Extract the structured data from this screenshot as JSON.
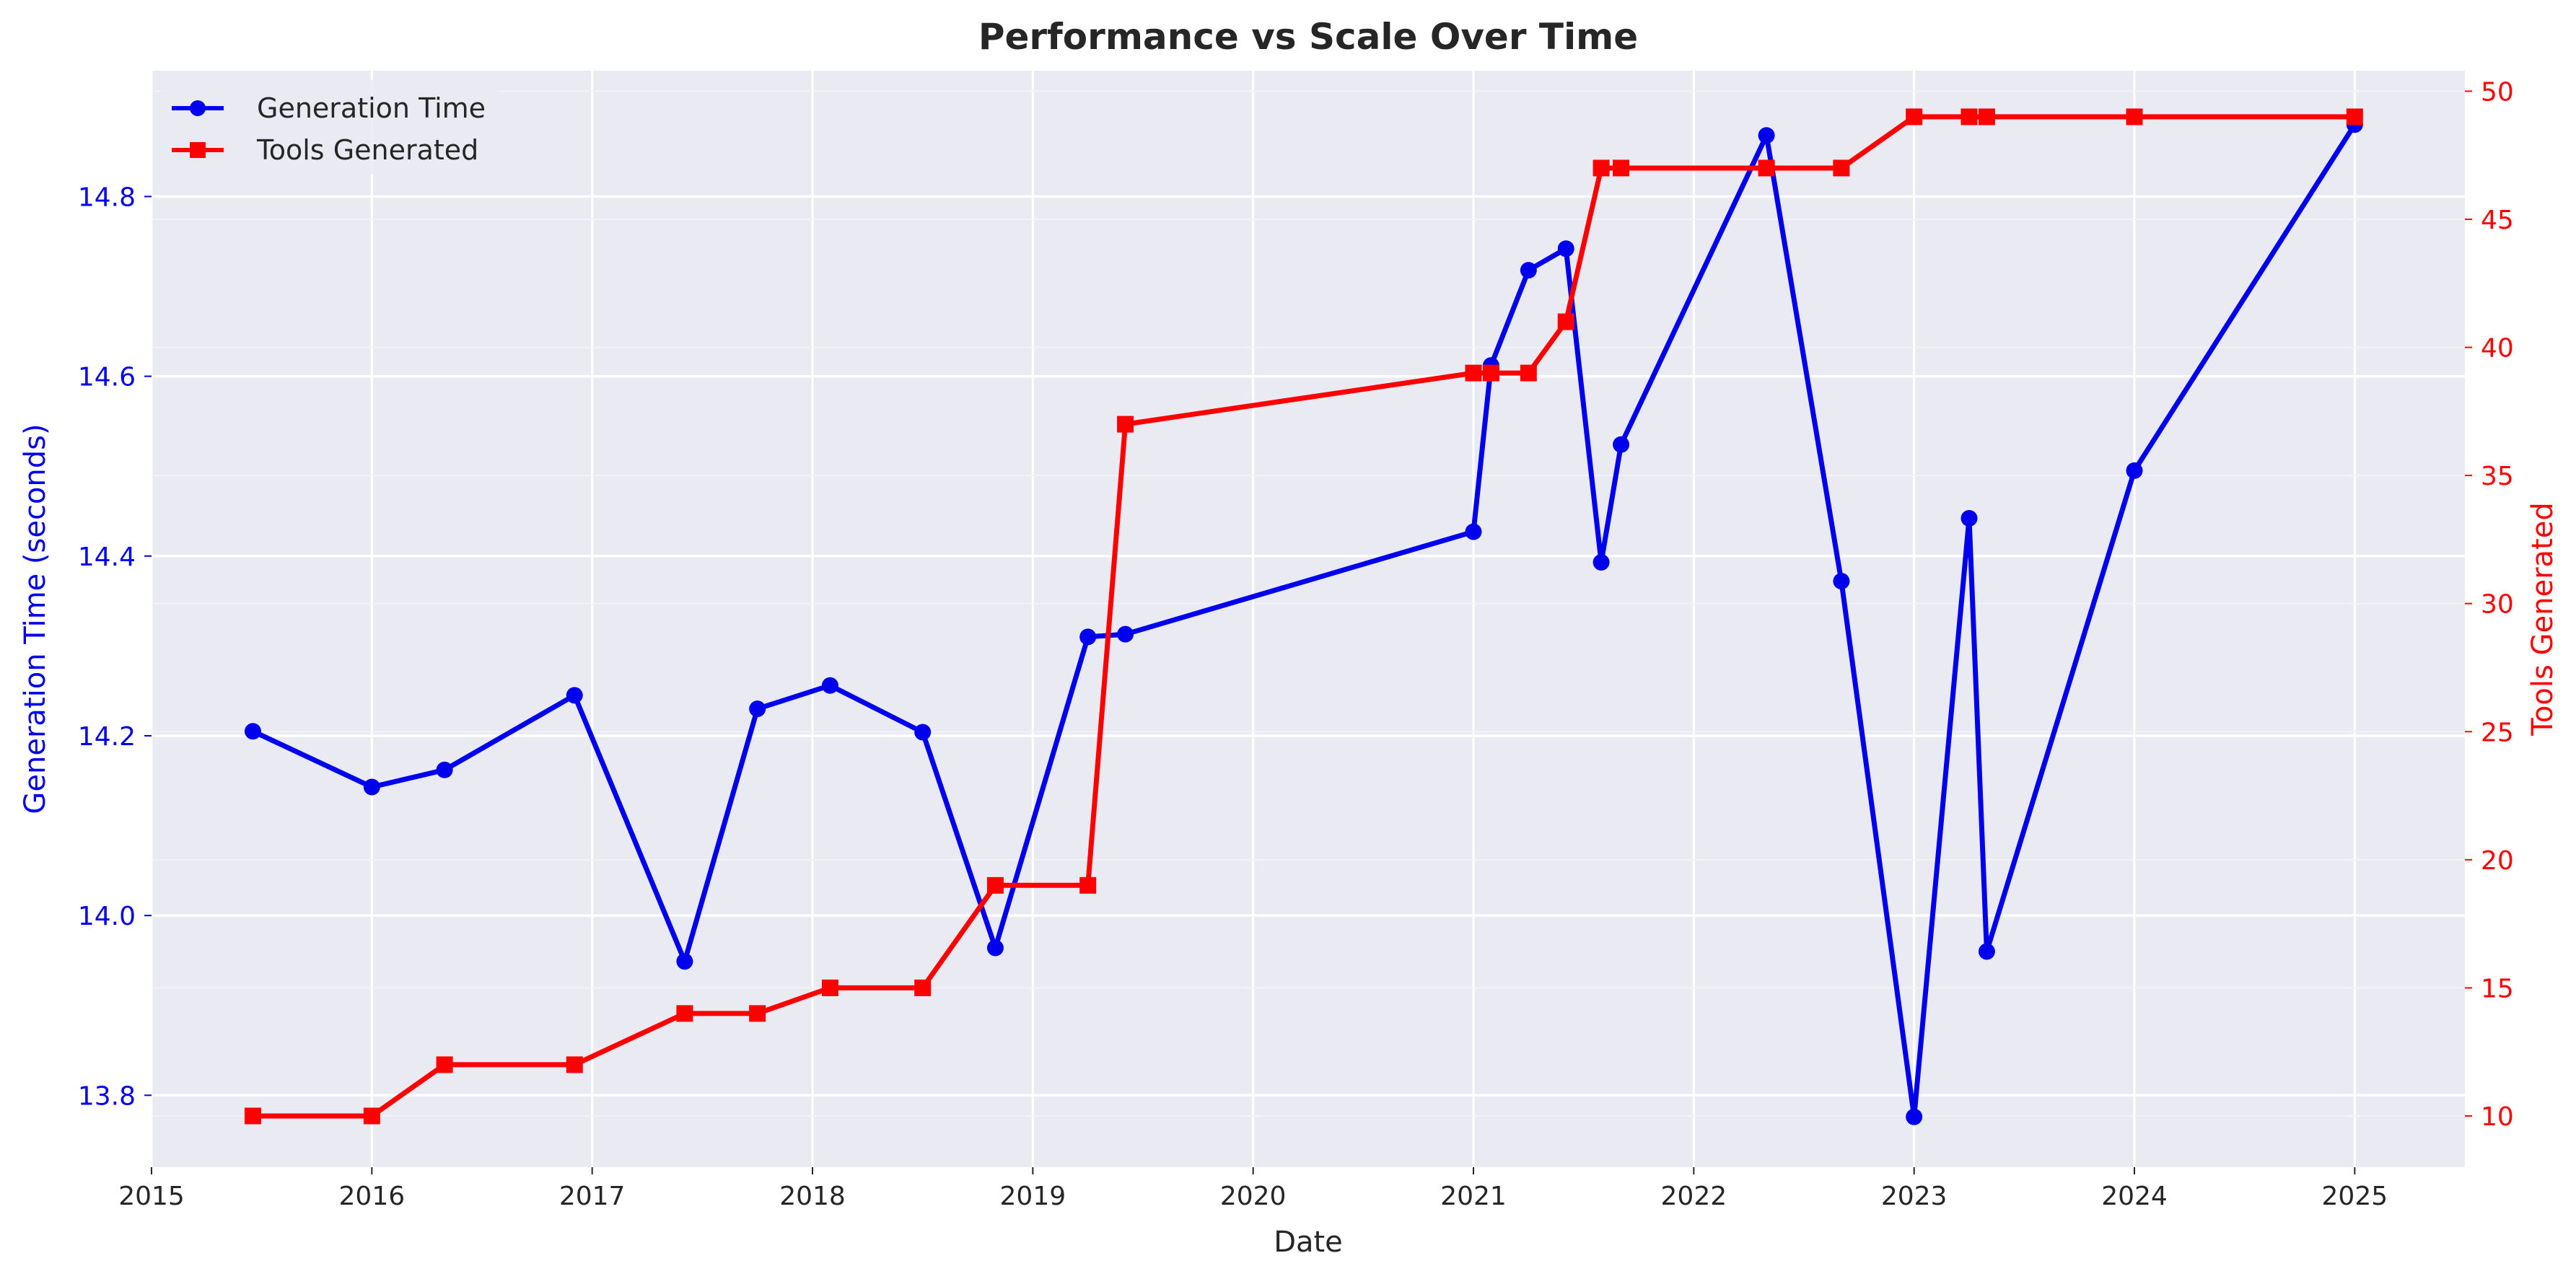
{
  "chart_data": {
    "type": "line",
    "title": "Performance vs Scale Over Time",
    "xlabel": "Date",
    "x_ticks": [
      "2015",
      "2016",
      "2017",
      "2018",
      "2019",
      "2020",
      "2021",
      "2022",
      "2023",
      "2024",
      "2025"
    ],
    "xlim": [
      2015.0,
      2025.5
    ],
    "left_axis": {
      "label": "Generation Time (seconds)",
      "color": "#0000ee",
      "ylim": [
        13.72,
        14.94
      ],
      "ticks": [
        13.8,
        14.0,
        14.2,
        14.4,
        14.6,
        14.8
      ],
      "tick_labels": [
        "13.8",
        "14.0",
        "14.2",
        "14.4",
        "14.6",
        "14.8"
      ]
    },
    "right_axis": {
      "label": "Tools Generated",
      "color": "#ff0000",
      "ylim": [
        8.0,
        50.8
      ],
      "ticks": [
        10,
        15,
        20,
        25,
        30,
        35,
        40,
        45,
        50
      ],
      "tick_labels": [
        "10",
        "15",
        "20",
        "25",
        "30",
        "35",
        "40",
        "45",
        "50"
      ]
    },
    "legend": {
      "position": "top-left"
    },
    "series": [
      {
        "name": "Generation Time",
        "axis": "left",
        "color": "#0000ee",
        "marker": "circle",
        "x": [
          2015.46,
          2016.0,
          2016.33,
          2016.92,
          2017.42,
          2017.75,
          2018.08,
          2018.5,
          2018.83,
          2019.25,
          2019.42,
          2021.0,
          2021.08,
          2021.25,
          2021.42,
          2021.58,
          2021.67,
          2022.33,
          2022.67,
          2023.0,
          2023.25,
          2023.33,
          2024.0,
          2025.0
        ],
        "values": [
          14.205,
          14.143,
          14.162,
          14.245,
          13.949,
          14.23,
          14.256,
          14.204,
          13.964,
          14.31,
          14.313,
          14.427,
          14.612,
          14.718,
          14.742,
          14.393,
          14.524,
          14.868,
          14.372,
          13.776,
          14.442,
          13.96,
          14.495,
          14.88
        ]
      },
      {
        "name": "Tools Generated",
        "axis": "right",
        "color": "#ff0000",
        "marker": "square",
        "x": [
          2015.46,
          2016.0,
          2016.33,
          2016.92,
          2017.42,
          2017.75,
          2018.08,
          2018.5,
          2018.83,
          2019.25,
          2019.42,
          2021.0,
          2021.08,
          2021.25,
          2021.42,
          2021.58,
          2021.67,
          2022.33,
          2022.67,
          2023.0,
          2023.25,
          2023.33,
          2024.0,
          2025.0
        ],
        "values": [
          10,
          10,
          12,
          12,
          14,
          14,
          15,
          15,
          19,
          19,
          37,
          39,
          39,
          39,
          41,
          47,
          47,
          47,
          47,
          49,
          49,
          49,
          49,
          49
        ]
      }
    ]
  }
}
